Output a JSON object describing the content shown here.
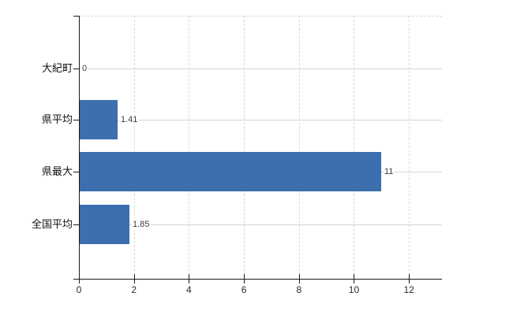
{
  "chart_data": {
    "type": "bar",
    "orientation": "horizontal",
    "title": "",
    "xlabel": "",
    "ylabel": "",
    "categories": [
      "大紀町",
      "県平均",
      "県最大",
      "全国平均"
    ],
    "values": [
      0,
      1.41,
      11,
      1.85
    ],
    "value_labels": [
      "0",
      "1.41",
      "11",
      "1.85"
    ],
    "x_tick_labels": [
      "0",
      "2",
      "4",
      "6",
      "8",
      "10",
      "12"
    ],
    "x_tick_values": [
      0,
      2,
      4,
      6,
      8,
      10,
      12
    ],
    "xlim": [
      0,
      13.2
    ],
    "grid": true,
    "legend": "none",
    "colors": {
      "bar": "#3d6eae",
      "axis": "#1a1a1a",
      "gridline": "#d8d8d8",
      "category_text": "#111111",
      "value_text": "#3c3c3c",
      "tick_text": "#2b2b2b",
      "background": "#ffffff"
    }
  }
}
